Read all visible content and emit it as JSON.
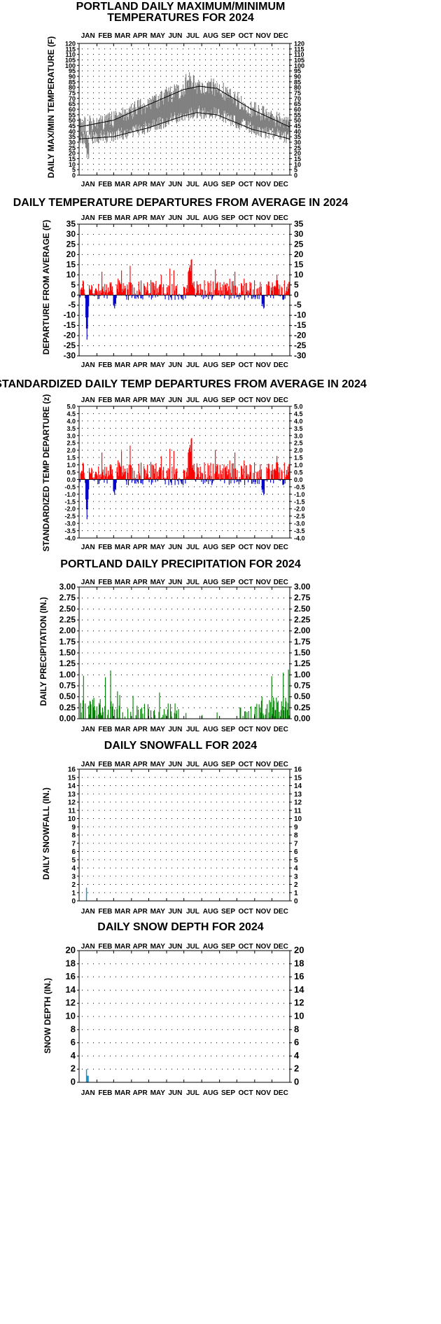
{
  "months": [
    "JAN",
    "FEB",
    "MAR",
    "APR",
    "MAY",
    "JUN",
    "JUL",
    "AUG",
    "SEP",
    "OCT",
    "NOV",
    "DEC"
  ],
  "days_in_month": [
    31,
    29,
    31,
    30,
    31,
    30,
    31,
    31,
    30,
    31,
    30,
    31
  ],
  "colors": {
    "temp_band": "#808080",
    "normal_line": "#000000",
    "above": "#ff0000",
    "below": "#0000cc",
    "precip": "#008000",
    "snow": "#1e90c8",
    "snow_depth": "#1e90c8"
  },
  "chart_data": [
    {
      "id": "temps",
      "type": "area",
      "title_lines": [
        "PORTLAND DAILY MAXIMUM/MINIMUM",
        "TEMPERATURES FOR 2024"
      ],
      "ylabel": "DAILY MAX/MIN TEMPERATURE (F)",
      "ylim": [
        0,
        120
      ],
      "yticks": [
        0,
        5,
        10,
        15,
        20,
        25,
        30,
        35,
        40,
        45,
        50,
        55,
        60,
        65,
        70,
        75,
        80,
        85,
        90,
        95,
        100,
        105,
        110,
        115,
        120
      ],
      "grid": true,
      "normal_high_anchors": {
        "day": [
          1,
          60,
          120,
          182,
          210,
          240,
          300,
          366
        ],
        "temp": [
          44,
          50,
          64,
          78,
          81,
          79,
          60,
          44
        ]
      },
      "normal_low_anchors": {
        "day": [
          1,
          60,
          120,
          182,
          205,
          240,
          300,
          366
        ],
        "temp": [
          33,
          35,
          43,
          54,
          57,
          55,
          42,
          33
        ]
      },
      "notes_observed": {
        "max_high": 101,
        "max_high_month": "JUL",
        "min_low": 14,
        "min_low_month": "JAN"
      }
    },
    {
      "id": "departures",
      "type": "bar",
      "title": "DAILY TEMPERATURE DEPARTURES FROM AVERAGE IN 2024",
      "ylabel": "DEPARTURE FROM AVERAGE (F)",
      "ylim": [
        -30,
        35
      ],
      "yticks": [
        -30,
        -25,
        -20,
        -15,
        -10,
        -5,
        0,
        5,
        10,
        15,
        20,
        25,
        30,
        35
      ],
      "grid": true,
      "series": [
        {
          "name": "above",
          "values_approx_max": 18
        },
        {
          "name": "below",
          "values_approx_min": -22
        }
      ]
    },
    {
      "id": "zscores",
      "type": "bar",
      "title": "STANDARDIZED DAILY TEMP DEPARTURES FROM AVERAGE IN 2024",
      "ylabel": "STANDARDIZED TEMP DEPARTURE (z)",
      "ylim": [
        -4,
        5
      ],
      "yticks": [
        -4.0,
        -3.5,
        -3.0,
        -2.5,
        -2.0,
        -1.5,
        -1.0,
        -0.5,
        0.0,
        0.5,
        1.0,
        1.5,
        2.0,
        2.5,
        3.0,
        3.5,
        4.0,
        4.5,
        5.0
      ],
      "grid": true
    },
    {
      "id": "precip",
      "type": "bar",
      "title": "PORTLAND DAILY PRECIPITATION FOR 2024",
      "ylabel": "DAILY PRECIPITATION (IN.)",
      "ylim": [
        0,
        3
      ],
      "yticks": [
        0.0,
        0.25,
        0.5,
        0.75,
        1.0,
        1.25,
        1.5,
        1.75,
        2.0,
        2.25,
        2.5,
        2.75,
        3.0
      ],
      "grid": true
    },
    {
      "id": "snowfall",
      "type": "bar",
      "title": "DAILY SNOWFALL FOR 2024",
      "ylabel": "DAILY SNOWFALL (IN.)",
      "ylim": [
        0,
        16
      ],
      "yticks": [
        0,
        1,
        2,
        3,
        4,
        5,
        6,
        7,
        8,
        9,
        10,
        11,
        12,
        13,
        14,
        15,
        16
      ],
      "grid": true,
      "points": [
        {
          "day": 13,
          "value": 1.6
        }
      ]
    },
    {
      "id": "snowdepth",
      "type": "bar",
      "title": "DAILY SNOW DEPTH FOR 2024",
      "ylabel": "SNOW DEPTH (IN.)",
      "ylim": [
        0,
        20
      ],
      "yticks": [
        0,
        2,
        4,
        6,
        8,
        10,
        12,
        14,
        16,
        18,
        20
      ],
      "grid": true,
      "points": [
        {
          "day": 13,
          "value": 2
        },
        {
          "day": 14,
          "value": 1
        },
        {
          "day": 15,
          "value": 1
        },
        {
          "day": 16,
          "value": 1
        }
      ]
    }
  ]
}
